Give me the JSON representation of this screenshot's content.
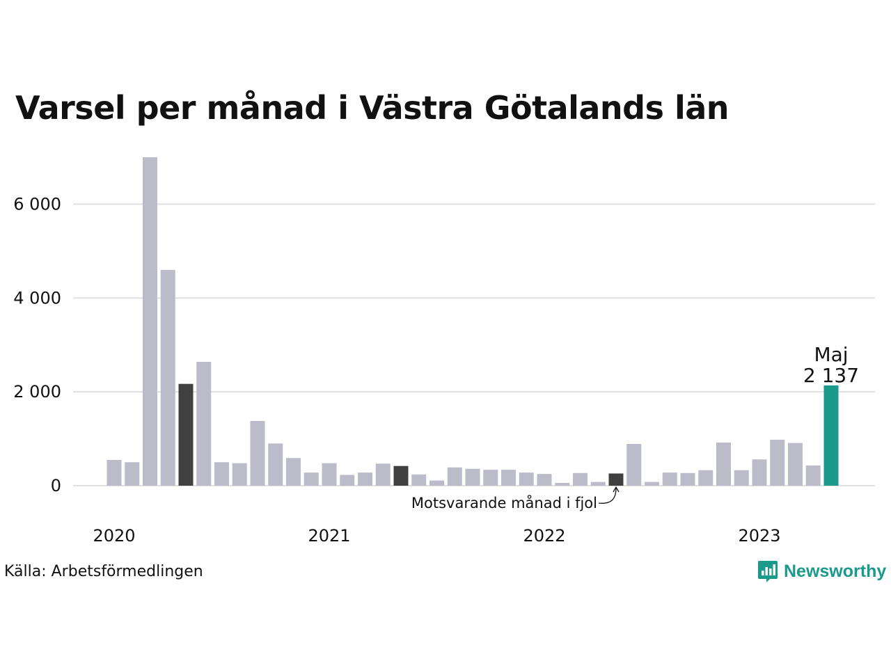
{
  "title": "Varsel per månad i Västra Götalands län",
  "source": "Källa: Arbetsförmedlingen",
  "brand": {
    "name": "Newsworthy",
    "icon": "newsworthy-logo-icon",
    "color": "#1a9a8c"
  },
  "colors": {
    "bar": "#bcbbca",
    "highlight": "#404040",
    "latest": "#1a9a8c",
    "grid": "#e0e0e0"
  },
  "chart_data": {
    "type": "bar",
    "title": "Varsel per månad i Västra Götalands län",
    "xlabel": "",
    "ylabel": "",
    "ylim": [
      0,
      7000
    ],
    "yticks": [
      0,
      2000,
      4000,
      6000
    ],
    "ytick_labels": [
      "0",
      "2 000",
      "4 000",
      "6 000"
    ],
    "xtick_labels": [
      "2020",
      "2021",
      "2022",
      "2023"
    ],
    "grid": true,
    "categories": [
      "2020-01",
      "2020-02",
      "2020-03",
      "2020-04",
      "2020-05",
      "2020-06",
      "2020-07",
      "2020-08",
      "2020-09",
      "2020-10",
      "2020-11",
      "2020-12",
      "2021-01",
      "2021-02",
      "2021-03",
      "2021-04",
      "2021-05",
      "2021-06",
      "2021-07",
      "2021-08",
      "2021-09",
      "2021-10",
      "2021-11",
      "2021-12",
      "2022-01",
      "2022-02",
      "2022-03",
      "2022-04",
      "2022-05",
      "2022-06",
      "2022-07",
      "2022-08",
      "2022-09",
      "2022-10",
      "2022-11",
      "2022-12",
      "2023-01",
      "2023-02",
      "2023-03",
      "2023-04",
      "2023-05"
    ],
    "values": [
      550,
      500,
      7000,
      4600,
      2170,
      2640,
      500,
      480,
      1380,
      900,
      590,
      280,
      480,
      230,
      280,
      470,
      420,
      240,
      110,
      390,
      360,
      340,
      340,
      280,
      250,
      60,
      270,
      80,
      260,
      890,
      80,
      280,
      270,
      330,
      920,
      330,
      560,
      980,
      910,
      430,
      2137
    ],
    "highlighted": [
      "2020-05",
      "2021-05",
      "2022-05"
    ],
    "latest": "2023-05",
    "latest_label": {
      "month": "Maj",
      "value": "2 137"
    },
    "annotation": "Motsvarande månad i fjol"
  }
}
